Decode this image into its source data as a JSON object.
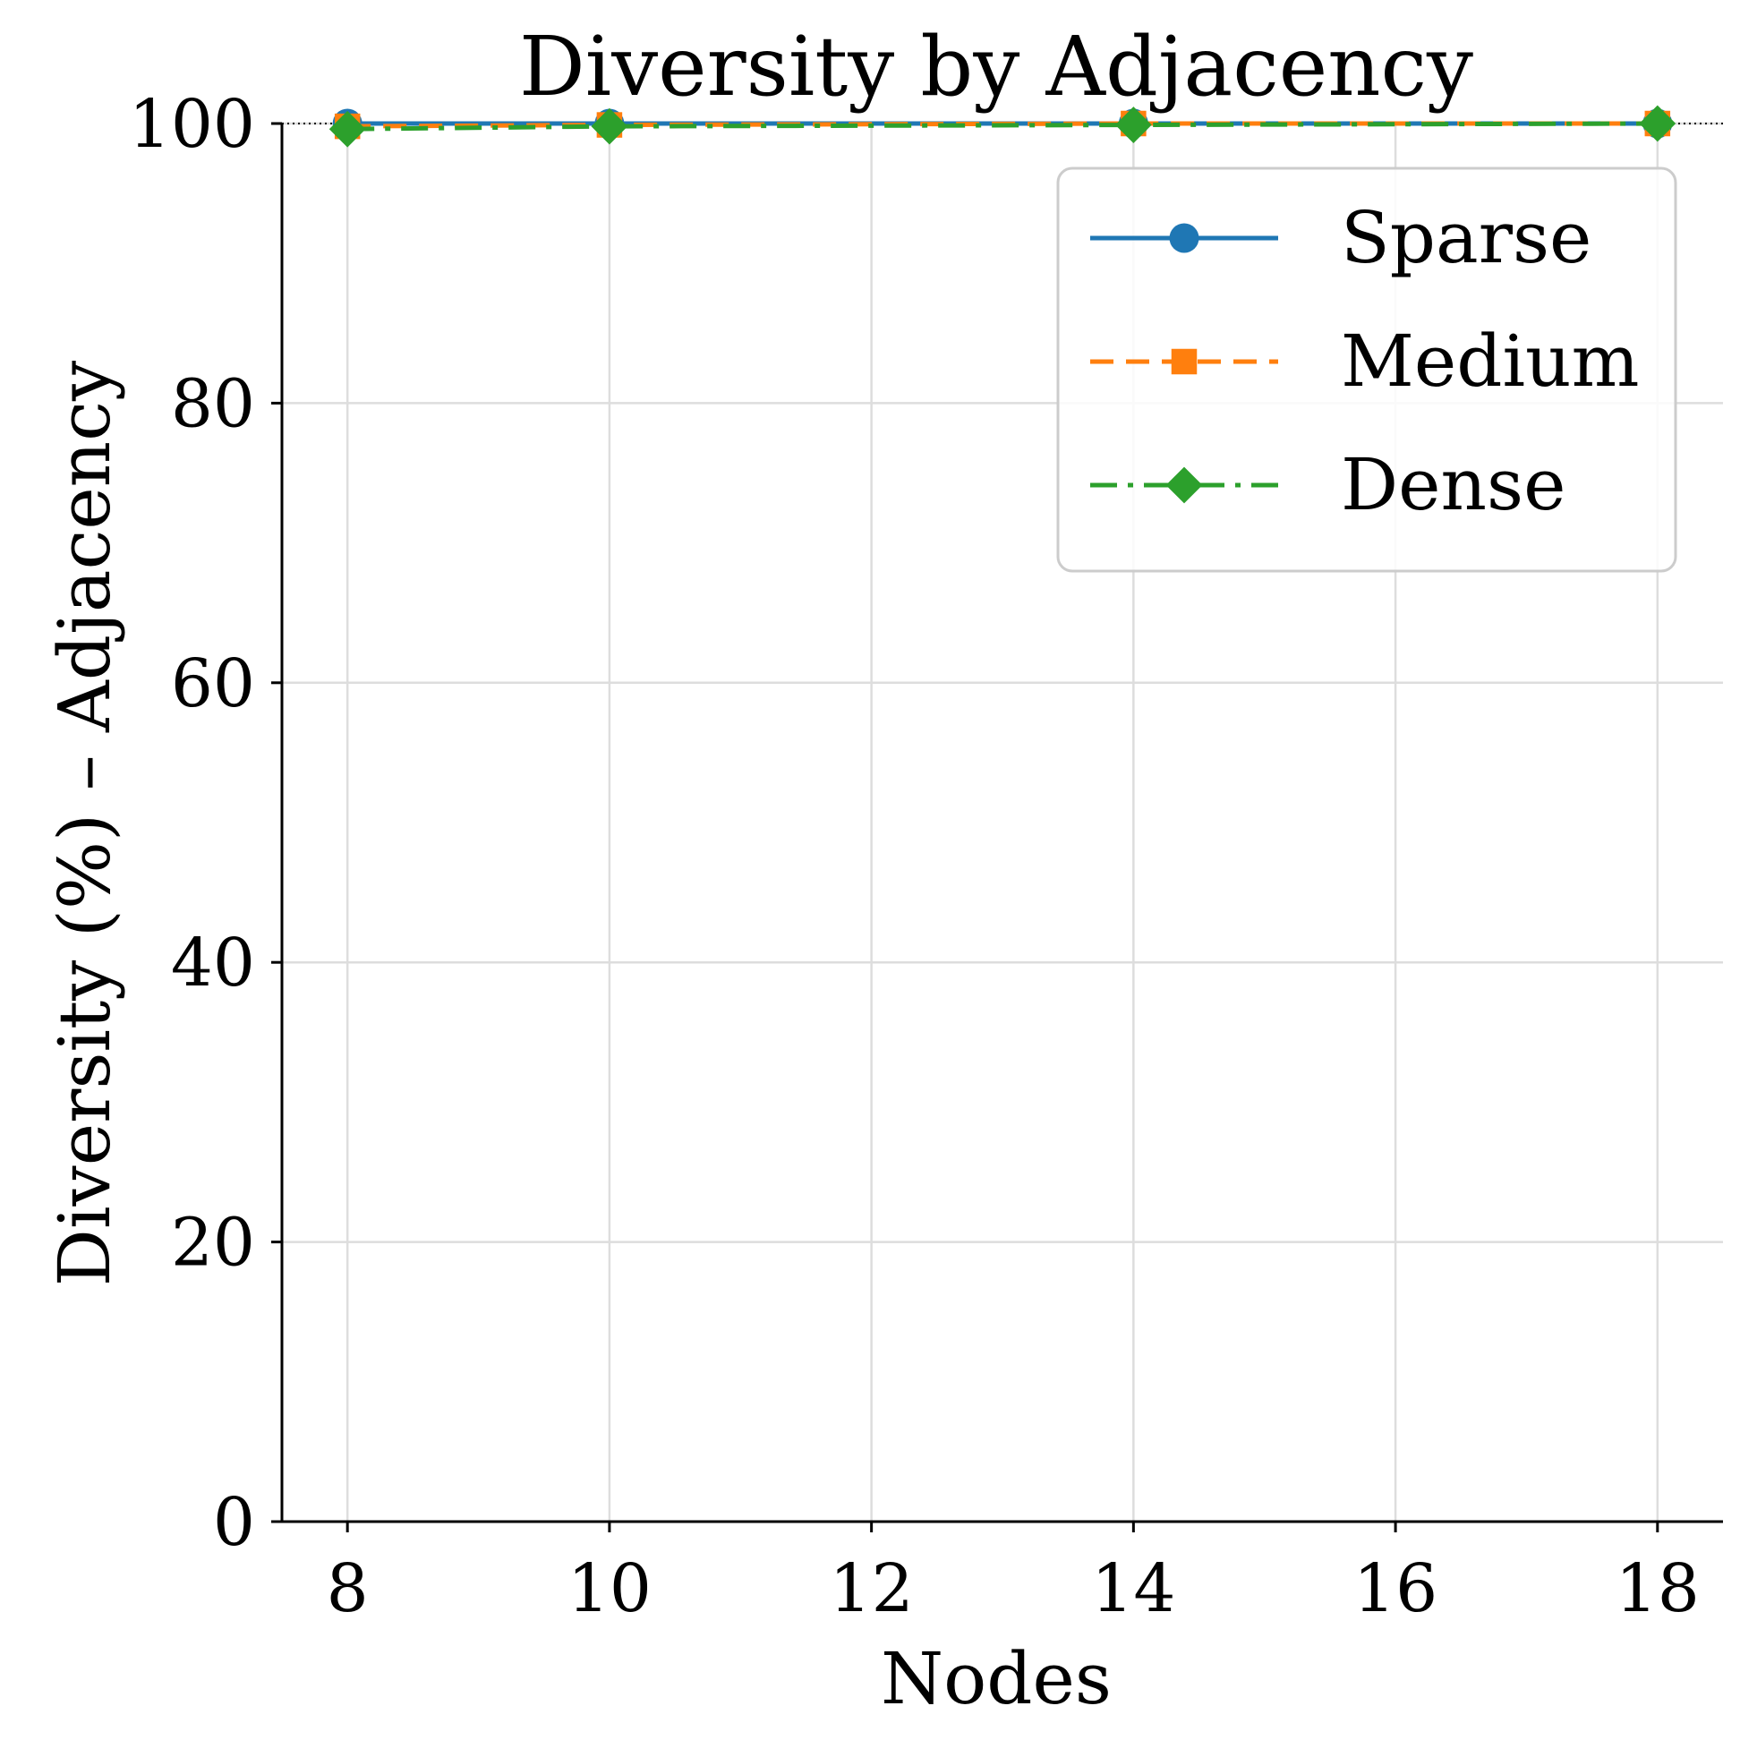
{
  "chart_data": {
    "type": "line",
    "title": "Diversity by Adjacency",
    "xlabel": "Nodes",
    "ylabel": "Diversity (%) – Adjacency",
    "x": [
      8,
      10,
      14,
      18
    ],
    "xticks": [
      8,
      10,
      12,
      14,
      16,
      18
    ],
    "xlim": [
      7.5,
      18.5
    ],
    "yticks": [
      0,
      20,
      40,
      60,
      80,
      100
    ],
    "ylim": [
      0,
      100
    ],
    "reference_line": 100,
    "grid": true,
    "legend_position": "top-right",
    "series": [
      {
        "name": "Sparse",
        "values": [
          100,
          100,
          100,
          100
        ],
        "color": "#1f77b4",
        "marker": "circle",
        "line_style": "solid"
      },
      {
        "name": "Medium",
        "values": [
          99.8,
          99.9,
          100,
          100
        ],
        "color": "#ff7f0e",
        "marker": "square",
        "line_style": "dashed"
      },
      {
        "name": "Dense",
        "values": [
          99.6,
          99.8,
          99.9,
          100
        ],
        "color": "#2ca02c",
        "marker": "diamond",
        "line_style": "dash-dot"
      }
    ]
  }
}
